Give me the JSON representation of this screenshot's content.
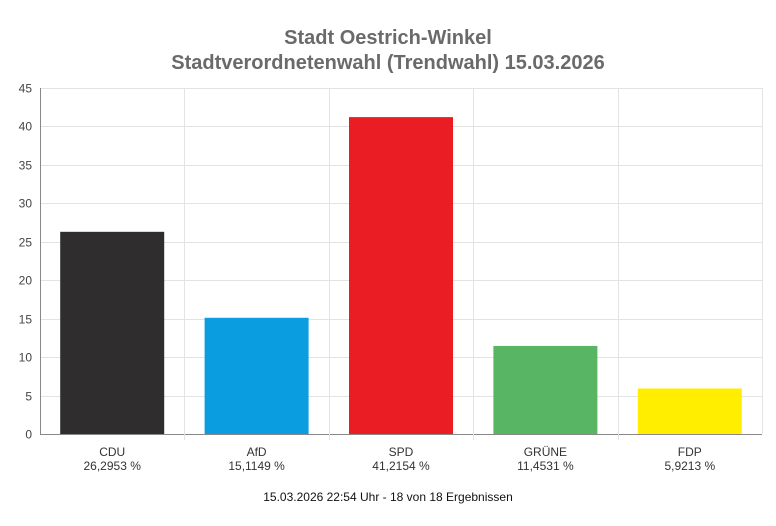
{
  "chart_data": {
    "type": "bar",
    "title": "Stadt Oestrich-Winkel",
    "subtitle": "Stadtverordnetenwahl (Trendwahl) 15.03.2026",
    "categories": [
      "CDU",
      "AfD",
      "SPD",
      "GRÜNE",
      "FDP"
    ],
    "value_labels": [
      "26,2953 %",
      "15,1149 %",
      "41,2154 %",
      "11,4531 %",
      "5,9213 %"
    ],
    "values": [
      26.2953,
      15.1149,
      41.2154,
      11.4531,
      5.9213
    ],
    "colors": [
      "#2f2d2e",
      "#0a9ee0",
      "#ea1c24",
      "#57b563",
      "#ffee00"
    ],
    "ylim": [
      0,
      45
    ],
    "yticks": [
      0,
      5,
      10,
      15,
      20,
      25,
      30,
      35,
      40,
      45
    ],
    "grid": true,
    "footer": "15.03.2026 22:54 Uhr - 18 von 18 Ergebnissen"
  }
}
